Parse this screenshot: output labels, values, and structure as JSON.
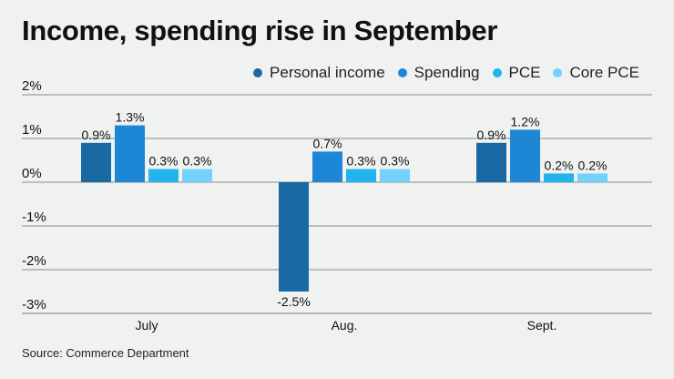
{
  "chart_data": {
    "type": "bar",
    "title": "Income, spending rise in September",
    "source": "Source: Commerce Department",
    "categories": [
      "July",
      "Aug.",
      "Sept."
    ],
    "series": [
      {
        "name": "Personal income",
        "color": "#1b69a3",
        "values": [
          0.9,
          -2.5,
          0.9
        ],
        "labels": [
          "0.9%",
          "-2.5%",
          "0.9%"
        ]
      },
      {
        "name": "Spending",
        "color": "#1e87d5",
        "values": [
          1.3,
          0.7,
          1.2
        ],
        "labels": [
          "1.3%",
          "0.7%",
          "1.2%"
        ]
      },
      {
        "name": "PCE",
        "color": "#22b4ee",
        "values": [
          0.3,
          0.3,
          0.2
        ],
        "labels": [
          "0.3%",
          "0.3%",
          "0.2%"
        ]
      },
      {
        "name": "Core PCE",
        "color": "#73d2fa",
        "values": [
          0.3,
          0.3,
          0.2
        ],
        "labels": [
          "0.3%",
          "0.3%",
          "0.2%"
        ]
      }
    ],
    "yticks": [
      2,
      1,
      0,
      -1,
      -2,
      -3
    ],
    "ytick_labels": [
      "2%",
      "1%",
      "0%",
      "-1%",
      "-2%",
      "-3%"
    ],
    "ylim": [
      -3,
      2
    ],
    "xlabel": "",
    "ylabel": "",
    "grid": true,
    "legend_position": "top-right"
  }
}
